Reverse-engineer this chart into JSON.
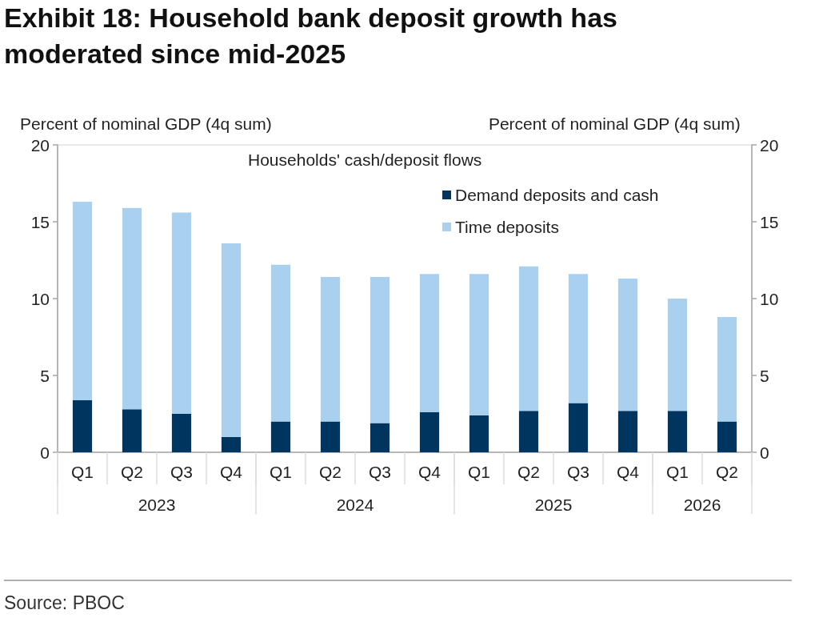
{
  "chart_data": {
    "type": "bar",
    "title": "Exhibit 18: Household bank deposit growth has moderated since mid-2025",
    "ylabel": "Percent of nominal GDP (4q sum)",
    "y2label": "Percent of nominal GDP (4q sum)",
    "legend_title": "Households' cash/deposit flows",
    "categories": [
      "Q1",
      "Q2",
      "Q3",
      "Q4",
      "Q1",
      "Q2",
      "Q3",
      "Q4",
      "Q1",
      "Q2",
      "Q3",
      "Q4",
      "Q1",
      "Q2"
    ],
    "series": [
      {
        "name": "Demand deposits and cash",
        "color": "#00355f",
        "values": [
          3.4,
          2.8,
          2.5,
          1.0,
          2.0,
          2.0,
          1.9,
          2.6,
          2.4,
          2.7,
          3.2,
          2.7,
          2.7,
          2.0
        ]
      },
      {
        "name": "Time deposits",
        "color": "#a9d1ef",
        "values": [
          12.9,
          13.1,
          13.1,
          12.6,
          10.2,
          9.4,
          9.5,
          9.0,
          9.2,
          9.4,
          8.4,
          8.6,
          7.3,
          6.8
        ]
      }
    ],
    "stacked": true,
    "ylim": [
      0,
      20
    ],
    "yticks": [
      0,
      5,
      10,
      15,
      20
    ],
    "y2lim": [
      0,
      20
    ],
    "y2ticks": [
      0,
      5,
      10,
      15,
      20
    ],
    "grid": false,
    "legend": "top",
    "annotations": [
      "2023",
      "2024",
      "2025",
      "2026",
      "Source: PBOC"
    ]
  }
}
